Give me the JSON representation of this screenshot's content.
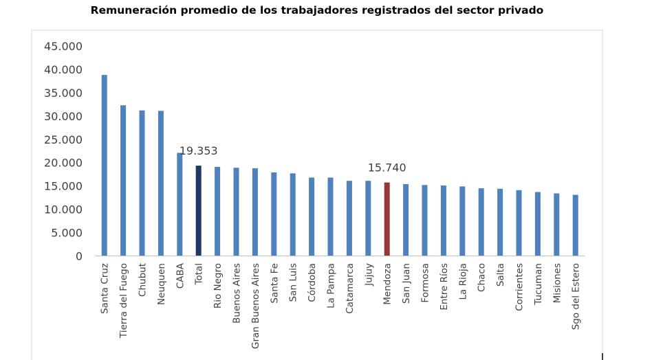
{
  "chart_data": {
    "type": "bar",
    "title": "Remuneración promedio de los trabajadores registrados del sector privado",
    "xlabel": "",
    "ylabel": "",
    "ylim": [
      0,
      45000
    ],
    "yticks": [
      "0",
      "5.000",
      "10.000",
      "15.000",
      "20.000",
      "25.000",
      "30.000",
      "35.000",
      "40.000",
      "45.000"
    ],
    "grid": false,
    "legend": "none",
    "categories": [
      "Santa Cruz",
      "Tierra del Fuego",
      "Chubut",
      "Neuquen",
      "CABA",
      "Total",
      "Rio Negro",
      "Buenos Aires",
      "Gran Buenos Aires",
      "Santa Fe",
      "San Luis",
      "Córdoba",
      "La Pampa",
      "Catamarca",
      "Jujuy",
      "Mendoza",
      "San Juan",
      "Formosa",
      "Entre Ríos",
      "La Rioja",
      "Chaco",
      "Salta",
      "Corrientes",
      "Tucuman",
      "Misiones",
      "Sgo del Estero"
    ],
    "values": [
      38800,
      32300,
      31200,
      31100,
      22100,
      19353,
      19100,
      18900,
      18800,
      17900,
      17700,
      16800,
      16800,
      16100,
      16100,
      15740,
      15400,
      15200,
      15100,
      14900,
      14500,
      14400,
      14100,
      13700,
      13400,
      13100
    ],
    "annotations": [
      {
        "category": "Total",
        "text": "19.353"
      },
      {
        "category": "Mendoza",
        "text": "15.740"
      }
    ],
    "colors": {
      "default": "#4f81bd",
      "highlight": {
        "Total": "#1f3864",
        "Mendoza": "#953735"
      },
      "axis": "#bfbfbf",
      "text": "#404040"
    }
  }
}
